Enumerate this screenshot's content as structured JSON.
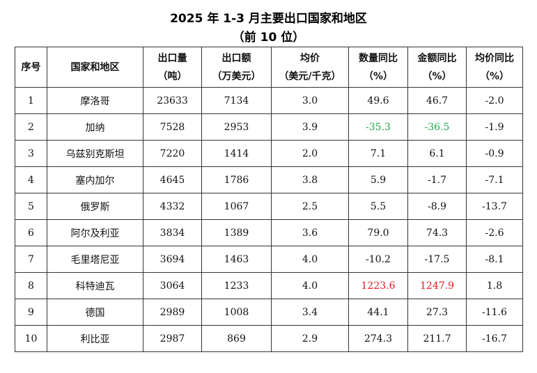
{
  "title": {
    "line1": "2025 年 1-3 月主要出口国家和地区",
    "line2": "（前 10 位）"
  },
  "table": {
    "headers": [
      {
        "line1": "序号",
        "line2": ""
      },
      {
        "line1": "国家和地区",
        "line2": ""
      },
      {
        "line1": "出口量",
        "line2": "（吨）"
      },
      {
        "line1": "出口额",
        "line2": "（万美元）"
      },
      {
        "line1": "均价",
        "line2": "（美元/千克）"
      },
      {
        "line1": "数量同比",
        "line2": "（%）"
      },
      {
        "line1": "金额同比",
        "line2": "（%）"
      },
      {
        "line1": "均价同比",
        "line2": "（%）"
      }
    ],
    "rows": [
      {
        "rank": "1",
        "country": "摩洛哥",
        "volume": "23633",
        "value": "7134",
        "price": "3.0",
        "vol_yoy": "49.6",
        "val_yoy": "46.7",
        "price_yoy": "-2.0"
      },
      {
        "rank": "2",
        "country": "加纳",
        "volume": "7528",
        "value": "2953",
        "price": "3.9",
        "vol_yoy": "-35.3",
        "val_yoy": "-36.5",
        "price_yoy": "-1.9"
      },
      {
        "rank": "3",
        "country": "乌兹别克斯坦",
        "volume": "7220",
        "value": "1414",
        "price": "2.0",
        "vol_yoy": "7.1",
        "val_yoy": "6.1",
        "price_yoy": "-0.9"
      },
      {
        "rank": "4",
        "country": "塞内加尔",
        "volume": "4645",
        "value": "1786",
        "price": "3.8",
        "vol_yoy": "5.9",
        "val_yoy": "-1.7",
        "price_yoy": "-7.1"
      },
      {
        "rank": "5",
        "country": "俄罗斯",
        "volume": "4332",
        "value": "1067",
        "price": "2.5",
        "vol_yoy": "5.5",
        "val_yoy": "-8.9",
        "price_yoy": "-13.7"
      },
      {
        "rank": "6",
        "country": "阿尔及利亚",
        "volume": "3834",
        "value": "1389",
        "price": "3.6",
        "vol_yoy": "79.0",
        "val_yoy": "74.3",
        "price_yoy": "-2.6"
      },
      {
        "rank": "7",
        "country": "毛里塔尼亚",
        "volume": "3694",
        "value": "1463",
        "price": "4.0",
        "vol_yoy": "-10.2",
        "val_yoy": "-17.5",
        "price_yoy": "-8.1"
      },
      {
        "rank": "8",
        "country": "科特迪瓦",
        "volume": "3064",
        "value": "1233",
        "price": "4.0",
        "vol_yoy": "1223.6",
        "val_yoy": "1247.9",
        "price_yoy": "1.8"
      },
      {
        "rank": "9",
        "country": "德国",
        "volume": "2989",
        "value": "1008",
        "price": "3.4",
        "vol_yoy": "44.1",
        "val_yoy": "27.3",
        "price_yoy": "-11.6"
      },
      {
        "rank": "10",
        "country": "利比亚",
        "volume": "2987",
        "value": "869",
        "price": "2.9",
        "vol_yoy": "274.3",
        "val_yoy": "211.7",
        "price_yoy": "-16.7"
      }
    ]
  },
  "colors": {
    "highlight_negative": "#22a34a",
    "highlight_positive": "#e8151c",
    "border": "#333333"
  }
}
